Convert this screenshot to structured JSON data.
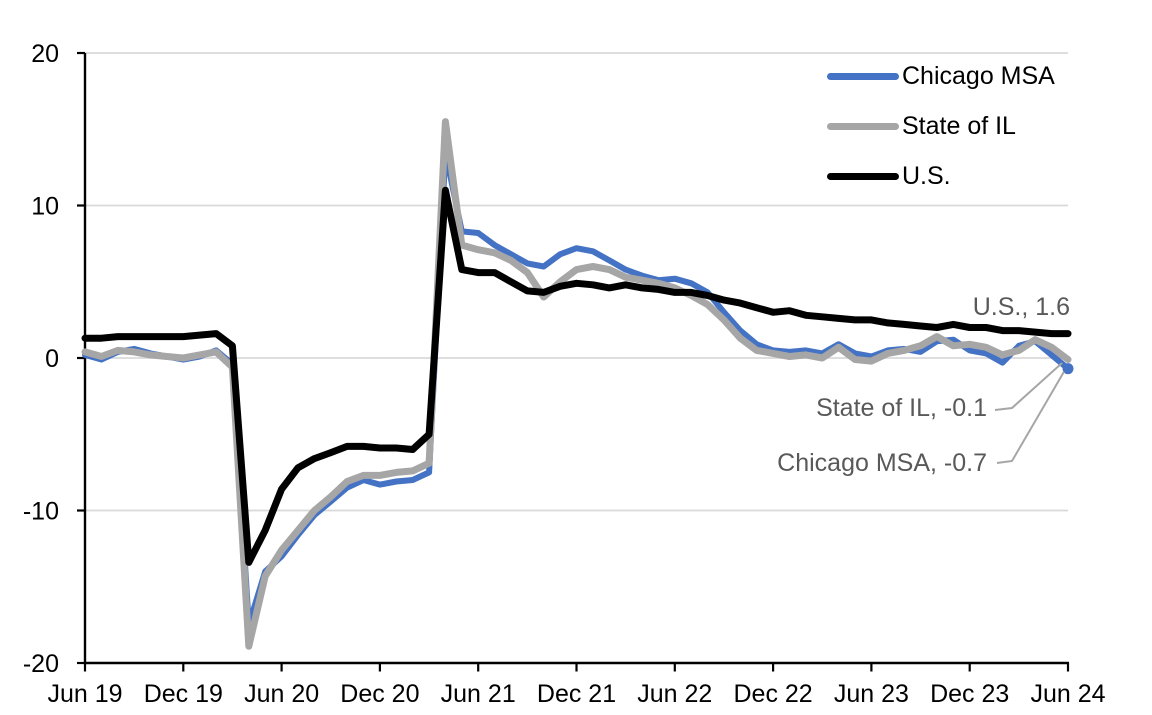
{
  "chart_data": {
    "type": "line",
    "title": "",
    "xlabel": "",
    "ylabel": "",
    "ylim": [
      -20,
      20
    ],
    "y_ticks": [
      20,
      10,
      0,
      -10,
      -20
    ],
    "x_tick_labels": [
      "Jun 19",
      "Dec 19",
      "Jun 20",
      "Dec 20",
      "Jun 21",
      "Dec 21",
      "Jun 22",
      "Dec 22",
      "Jun 23",
      "Dec 23",
      "Jun 24"
    ],
    "grid": true,
    "gridline_color": "#D9D9D9",
    "axis_color": "#000000",
    "legend_position": "top-right",
    "annotation_color": "#595959",
    "leader_line_color": "#A6A6A6",
    "months": [
      "2019-06",
      "2019-07",
      "2019-08",
      "2019-09",
      "2019-10",
      "2019-11",
      "2019-12",
      "2020-01",
      "2020-02",
      "2020-03",
      "2020-04",
      "2020-05",
      "2020-06",
      "2020-07",
      "2020-08",
      "2020-09",
      "2020-10",
      "2020-11",
      "2020-12",
      "2021-01",
      "2021-02",
      "2021-03",
      "2021-04",
      "2021-05",
      "2021-06",
      "2021-07",
      "2021-08",
      "2021-09",
      "2021-10",
      "2021-11",
      "2021-12",
      "2022-01",
      "2022-02",
      "2022-03",
      "2022-04",
      "2022-05",
      "2022-06",
      "2022-07",
      "2022-08",
      "2022-09",
      "2022-10",
      "2022-11",
      "2022-12",
      "2023-01",
      "2023-02",
      "2023-03",
      "2023-04",
      "2023-05",
      "2023-06",
      "2023-07",
      "2023-08",
      "2023-09",
      "2023-10",
      "2023-11",
      "2023-12",
      "2024-01",
      "2024-02",
      "2024-03",
      "2024-04",
      "2024-05",
      "2024-06"
    ],
    "series": [
      {
        "name": "Chicago MSA",
        "color": "#4472C4",
        "end_value": -0.7,
        "end_marker": true,
        "values": [
          0.2,
          -0.1,
          0.4,
          0.6,
          0.3,
          0.1,
          -0.1,
          0.1,
          0.5,
          -0.4,
          -17.5,
          -14.0,
          -13.0,
          -11.6,
          -10.3,
          -9.4,
          -8.5,
          -8.0,
          -8.3,
          -8.1,
          -8.0,
          -7.5,
          13.5,
          8.3,
          8.2,
          7.4,
          6.8,
          6.2,
          6.0,
          6.8,
          7.2,
          7.0,
          6.4,
          5.8,
          5.4,
          5.1,
          5.2,
          4.9,
          4.3,
          3.0,
          1.8,
          0.9,
          0.5,
          0.4,
          0.5,
          0.3,
          0.9,
          0.3,
          0.1,
          0.5,
          0.6,
          0.4,
          1.1,
          1.2,
          0.5,
          0.3,
          -0.3,
          0.8,
          1.1,
          0.2,
          -0.7
        ]
      },
      {
        "name": "State of IL",
        "color": "#A6A6A6",
        "end_value": -0.1,
        "end_marker": false,
        "values": [
          0.4,
          0.1,
          0.5,
          0.4,
          0.2,
          0.1,
          0.0,
          0.2,
          0.4,
          -0.6,
          -18.9,
          -14.3,
          -12.6,
          -11.3,
          -10.0,
          -9.1,
          -8.1,
          -7.7,
          -7.7,
          -7.5,
          -7.4,
          -6.9,
          15.5,
          7.4,
          7.1,
          6.9,
          6.4,
          5.6,
          4.0,
          5.0,
          5.8,
          6.0,
          5.8,
          5.3,
          5.1,
          4.9,
          4.6,
          4.1,
          3.5,
          2.5,
          1.3,
          0.5,
          0.3,
          0.1,
          0.2,
          0.0,
          0.7,
          -0.1,
          -0.2,
          0.3,
          0.5,
          0.8,
          1.4,
          0.8,
          0.9,
          0.7,
          0.2,
          0.5,
          1.2,
          0.7,
          -0.1
        ]
      },
      {
        "name": "U.S.",
        "color": "#000000",
        "end_value": 1.6,
        "end_marker": false,
        "values": [
          1.3,
          1.3,
          1.4,
          1.4,
          1.4,
          1.4,
          1.4,
          1.5,
          1.6,
          0.8,
          -13.4,
          -11.3,
          -8.6,
          -7.2,
          -6.6,
          -6.2,
          -5.8,
          -5.8,
          -5.9,
          -5.9,
          -6.0,
          -5.0,
          11.0,
          5.8,
          5.6,
          5.6,
          5.0,
          4.4,
          4.3,
          4.7,
          4.9,
          4.8,
          4.6,
          4.8,
          4.6,
          4.5,
          4.3,
          4.3,
          4.1,
          3.8,
          3.6,
          3.3,
          3.0,
          3.1,
          2.8,
          2.7,
          2.6,
          2.5,
          2.5,
          2.3,
          2.2,
          2.1,
          2.0,
          2.2,
          2.0,
          2.0,
          1.8,
          1.8,
          1.7,
          1.6,
          1.6
        ]
      }
    ]
  },
  "annotations": {
    "us": {
      "label": "U.S., 1.6"
    },
    "state_il": {
      "label": "State of IL, -0.1"
    },
    "chicago_msa": {
      "label": "Chicago MSA, -0.7"
    }
  }
}
